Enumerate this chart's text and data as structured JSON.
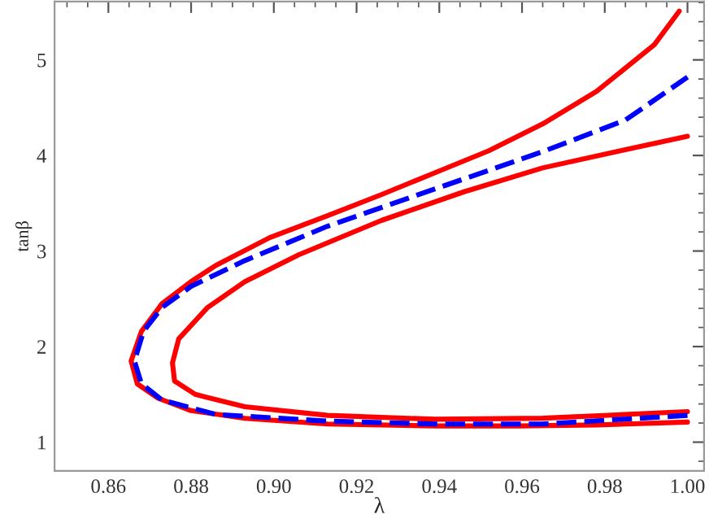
{
  "chart_data": {
    "type": "line",
    "xlabel": "λ",
    "ylabel": "tanβ",
    "xlim": [
      0.847,
      1.004
    ],
    "ylim": [
      0.7,
      5.61
    ],
    "xticks": [
      {
        "value": 0.86,
        "label": "0.86"
      },
      {
        "value": 0.88,
        "label": "0.88"
      },
      {
        "value": 0.9,
        "label": "0.90"
      },
      {
        "value": 0.92,
        "label": "0.92"
      },
      {
        "value": 0.94,
        "label": "0.94"
      },
      {
        "value": 0.96,
        "label": "0.96"
      },
      {
        "value": 0.98,
        "label": "0.98"
      },
      {
        "value": 1.0,
        "label": "1.00"
      }
    ],
    "yticks": [
      1,
      2,
      3,
      4,
      5
    ],
    "grid": false,
    "marker": "none",
    "series": [
      {
        "color": "#ff0000",
        "line_style": "solid",
        "x": [
          1.0,
          0.978,
          0.959,
          0.939,
          0.913,
          0.893,
          0.88,
          0.872,
          0.867,
          0.8655,
          0.868,
          0.873,
          0.88,
          0.886,
          0.899,
          0.913,
          0.926,
          0.939,
          0.952,
          0.965,
          0.978,
          0.992,
          0.998
        ],
        "values": [
          1.21,
          1.18,
          1.17,
          1.17,
          1.19,
          1.25,
          1.33,
          1.46,
          1.61,
          1.85,
          2.16,
          2.45,
          2.68,
          2.85,
          3.14,
          3.37,
          3.59,
          3.82,
          4.05,
          4.33,
          4.67,
          5.16,
          5.51
        ]
      },
      {
        "color": "#ff0000",
        "line_style": "solid",
        "x": [
          1.0,
          0.965,
          0.939,
          0.913,
          0.893,
          0.881,
          0.876,
          0.8755,
          0.877,
          0.884,
          0.893,
          0.906,
          0.926,
          0.946,
          0.965,
          0.985,
          1.0
        ],
        "values": [
          1.32,
          1.25,
          1.24,
          1.28,
          1.37,
          1.5,
          1.64,
          1.83,
          2.08,
          2.41,
          2.68,
          2.96,
          3.32,
          3.62,
          3.87,
          4.06,
          4.2
        ]
      },
      {
        "color": "#0000ff",
        "line_style": "dashed",
        "x": [
          1.0,
          0.965,
          0.939,
          0.913,
          0.886,
          0.873,
          0.868,
          0.8663,
          0.8685,
          0.873,
          0.88,
          0.893,
          0.913,
          0.939,
          0.965,
          0.985,
          1.0
        ],
        "values": [
          1.28,
          1.19,
          1.19,
          1.22,
          1.29,
          1.44,
          1.61,
          1.85,
          2.16,
          2.41,
          2.63,
          2.9,
          3.26,
          3.65,
          4.04,
          4.37,
          4.82
        ]
      }
    ]
  }
}
